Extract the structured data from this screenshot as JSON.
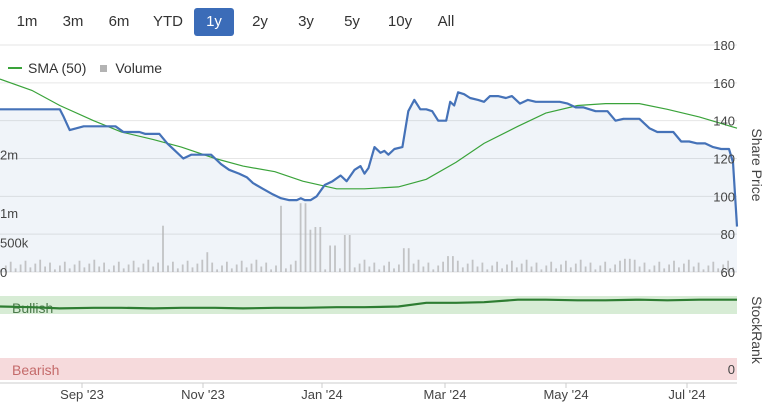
{
  "range_selector": {
    "options": [
      "1m",
      "3m",
      "6m",
      "YTD",
      "1y",
      "2y",
      "3y",
      "5y",
      "10y",
      "All"
    ],
    "selected": "1y",
    "selected_color": "#3b6cb8"
  },
  "legend": {
    "sma_label": "SMA (50)",
    "volume_label": "Volume",
    "sma_color": "#3aa33a",
    "volume_color": "#b3b3b3"
  },
  "chart_data": [
    {
      "type": "line",
      "ylabel": "Share Price",
      "ylim": [
        60,
        180
      ],
      "yticks": [
        60,
        80,
        100,
        120,
        140,
        160,
        180
      ],
      "xticks": [
        "Sep '23",
        "Nov '23",
        "Jan '24",
        "Mar '24",
        "May '24",
        "Jul '24"
      ],
      "grid": true,
      "legend_position": "top-left",
      "series": [
        {
          "name": "Price",
          "color": "#4572b8",
          "x": [
            "2023-07-16",
            "2023-07-24",
            "2023-08-01",
            "2023-08-07",
            "2023-08-12",
            "2023-08-15",
            "2023-08-17",
            "2023-08-20",
            "2023-08-27",
            "2023-09-01",
            "2023-09-07",
            "2023-09-12",
            "2023-09-16",
            "2023-09-20",
            "2023-09-24",
            "2023-09-27",
            "2023-10-04",
            "2023-10-08",
            "2023-10-12",
            "2023-10-16",
            "2023-10-20",
            "2023-10-24",
            "2023-10-27",
            "2023-10-30",
            "2023-11-01",
            "2023-11-04",
            "2023-11-08",
            "2023-11-13",
            "2023-11-17",
            "2023-11-20",
            "2023-11-25",
            "2023-11-30",
            "2023-12-04",
            "2023-12-08",
            "2023-12-12",
            "2023-12-14",
            "2023-12-16",
            "2023-12-19",
            "2023-12-22",
            "2023-12-26",
            "2023-12-30",
            "2024-01-03",
            "2024-01-06",
            "2024-01-10",
            "2024-01-13",
            "2024-01-15",
            "2024-01-17",
            "2024-01-20",
            "2024-01-23",
            "2024-01-25",
            "2024-01-27",
            "2024-01-30",
            "2024-02-03",
            "2024-02-06",
            "2024-02-09",
            "2024-02-12",
            "2024-02-15",
            "2024-02-18",
            "2024-02-21",
            "2024-02-25",
            "2024-02-27",
            "2024-02-29",
            "2024-03-02",
            "2024-03-05",
            "2024-03-08",
            "2024-03-12",
            "2024-03-15",
            "2024-03-18",
            "2024-03-22",
            "2024-03-26",
            "2024-03-29",
            "2024-04-02",
            "2024-04-06",
            "2024-04-10",
            "2024-04-14",
            "2024-04-18",
            "2024-04-22",
            "2024-04-26",
            "2024-04-30",
            "2024-05-04",
            "2024-05-10",
            "2024-05-16",
            "2024-05-20",
            "2024-05-24",
            "2024-05-28",
            "2024-06-01",
            "2024-06-06",
            "2024-06-10",
            "2024-06-14",
            "2024-06-18",
            "2024-06-22",
            "2024-06-26",
            "2024-06-30",
            "2024-07-04",
            "2024-07-08",
            "2024-07-12",
            "2024-07-16",
            "2024-07-18",
            "2024-07-20"
          ],
          "y": [
            146,
            146,
            146,
            146,
            146,
            146,
            142,
            135,
            137,
            137,
            137,
            137,
            134,
            134,
            134,
            133,
            133,
            128,
            124,
            120,
            122,
            122,
            122,
            122,
            120,
            117,
            114,
            112,
            110,
            107,
            104,
            101,
            99,
            98,
            98,
            99,
            98,
            98,
            100,
            106,
            108,
            111,
            108,
            114,
            116,
            112,
            115,
            126,
            123,
            124,
            122,
            125,
            126,
            145,
            151,
            146,
            146,
            145,
            140,
            140,
            150,
            148,
            155,
            154,
            152,
            151,
            150,
            153,
            153,
            152,
            153,
            149,
            151,
            150,
            150,
            150,
            150,
            149,
            147,
            147,
            145,
            145,
            140,
            141,
            141,
            141,
            136,
            134,
            134,
            134,
            129,
            129,
            128,
            128,
            126,
            125,
            125,
            118,
            84
          ]
        },
        {
          "name": "SMA (50)",
          "color": "#3aa33a",
          "x": [
            "2023-07-16",
            "2023-08-01",
            "2023-08-15",
            "2023-09-01",
            "2023-09-15",
            "2023-10-01",
            "2023-10-15",
            "2023-11-01",
            "2023-11-15",
            "2023-12-01",
            "2023-12-15",
            "2024-01-01",
            "2024-01-15",
            "2024-02-01",
            "2024-02-15",
            "2024-03-01",
            "2024-03-15",
            "2024-04-01",
            "2024-04-15",
            "2024-05-01",
            "2024-05-15",
            "2024-06-01",
            "2024-06-15",
            "2024-07-01",
            "2024-07-20"
          ],
          "y": [
            162,
            156,
            148,
            140,
            134,
            130,
            126,
            120,
            116,
            113,
            108,
            104,
            104,
            105,
            109,
            118,
            128,
            137,
            144,
            148,
            149,
            149,
            146,
            142,
            136
          ]
        }
      ]
    },
    {
      "type": "bar",
      "name": "Volume",
      "ylim": [
        0,
        2500000
      ],
      "yticks": [
        0,
        500000,
        1000000,
        2000000
      ],
      "ytick_labels": [
        "0",
        "500k",
        "1m",
        "2m"
      ],
      "color": "#b3b3b3"
    },
    {
      "type": "area",
      "ylabel": "StockRank",
      "ylim": [
        0,
        100
      ],
      "ytick_labels": [
        "0"
      ],
      "band_labels": [
        "Bullish",
        "Bearish"
      ],
      "color": "#2e7d32",
      "x": [
        "2023-07-16",
        "2023-08-01",
        "2023-08-15",
        "2023-09-01",
        "2023-09-15",
        "2023-10-01",
        "2023-10-15",
        "2023-11-01",
        "2023-11-15",
        "2023-12-01",
        "2023-12-15",
        "2024-01-01",
        "2024-01-15",
        "2024-02-01",
        "2024-02-15",
        "2024-03-01",
        "2024-03-15",
        "2024-04-01",
        "2024-04-15",
        "2024-05-01",
        "2024-05-15",
        "2024-06-01",
        "2024-06-15",
        "2024-07-01",
        "2024-07-20"
      ],
      "y": [
        83,
        82,
        80,
        81,
        81,
        80,
        81,
        81,
        80,
        81,
        81,
        82,
        82,
        83,
        89,
        89,
        90,
        94,
        94,
        93,
        93,
        94,
        93,
        94,
        94
      ]
    }
  ]
}
